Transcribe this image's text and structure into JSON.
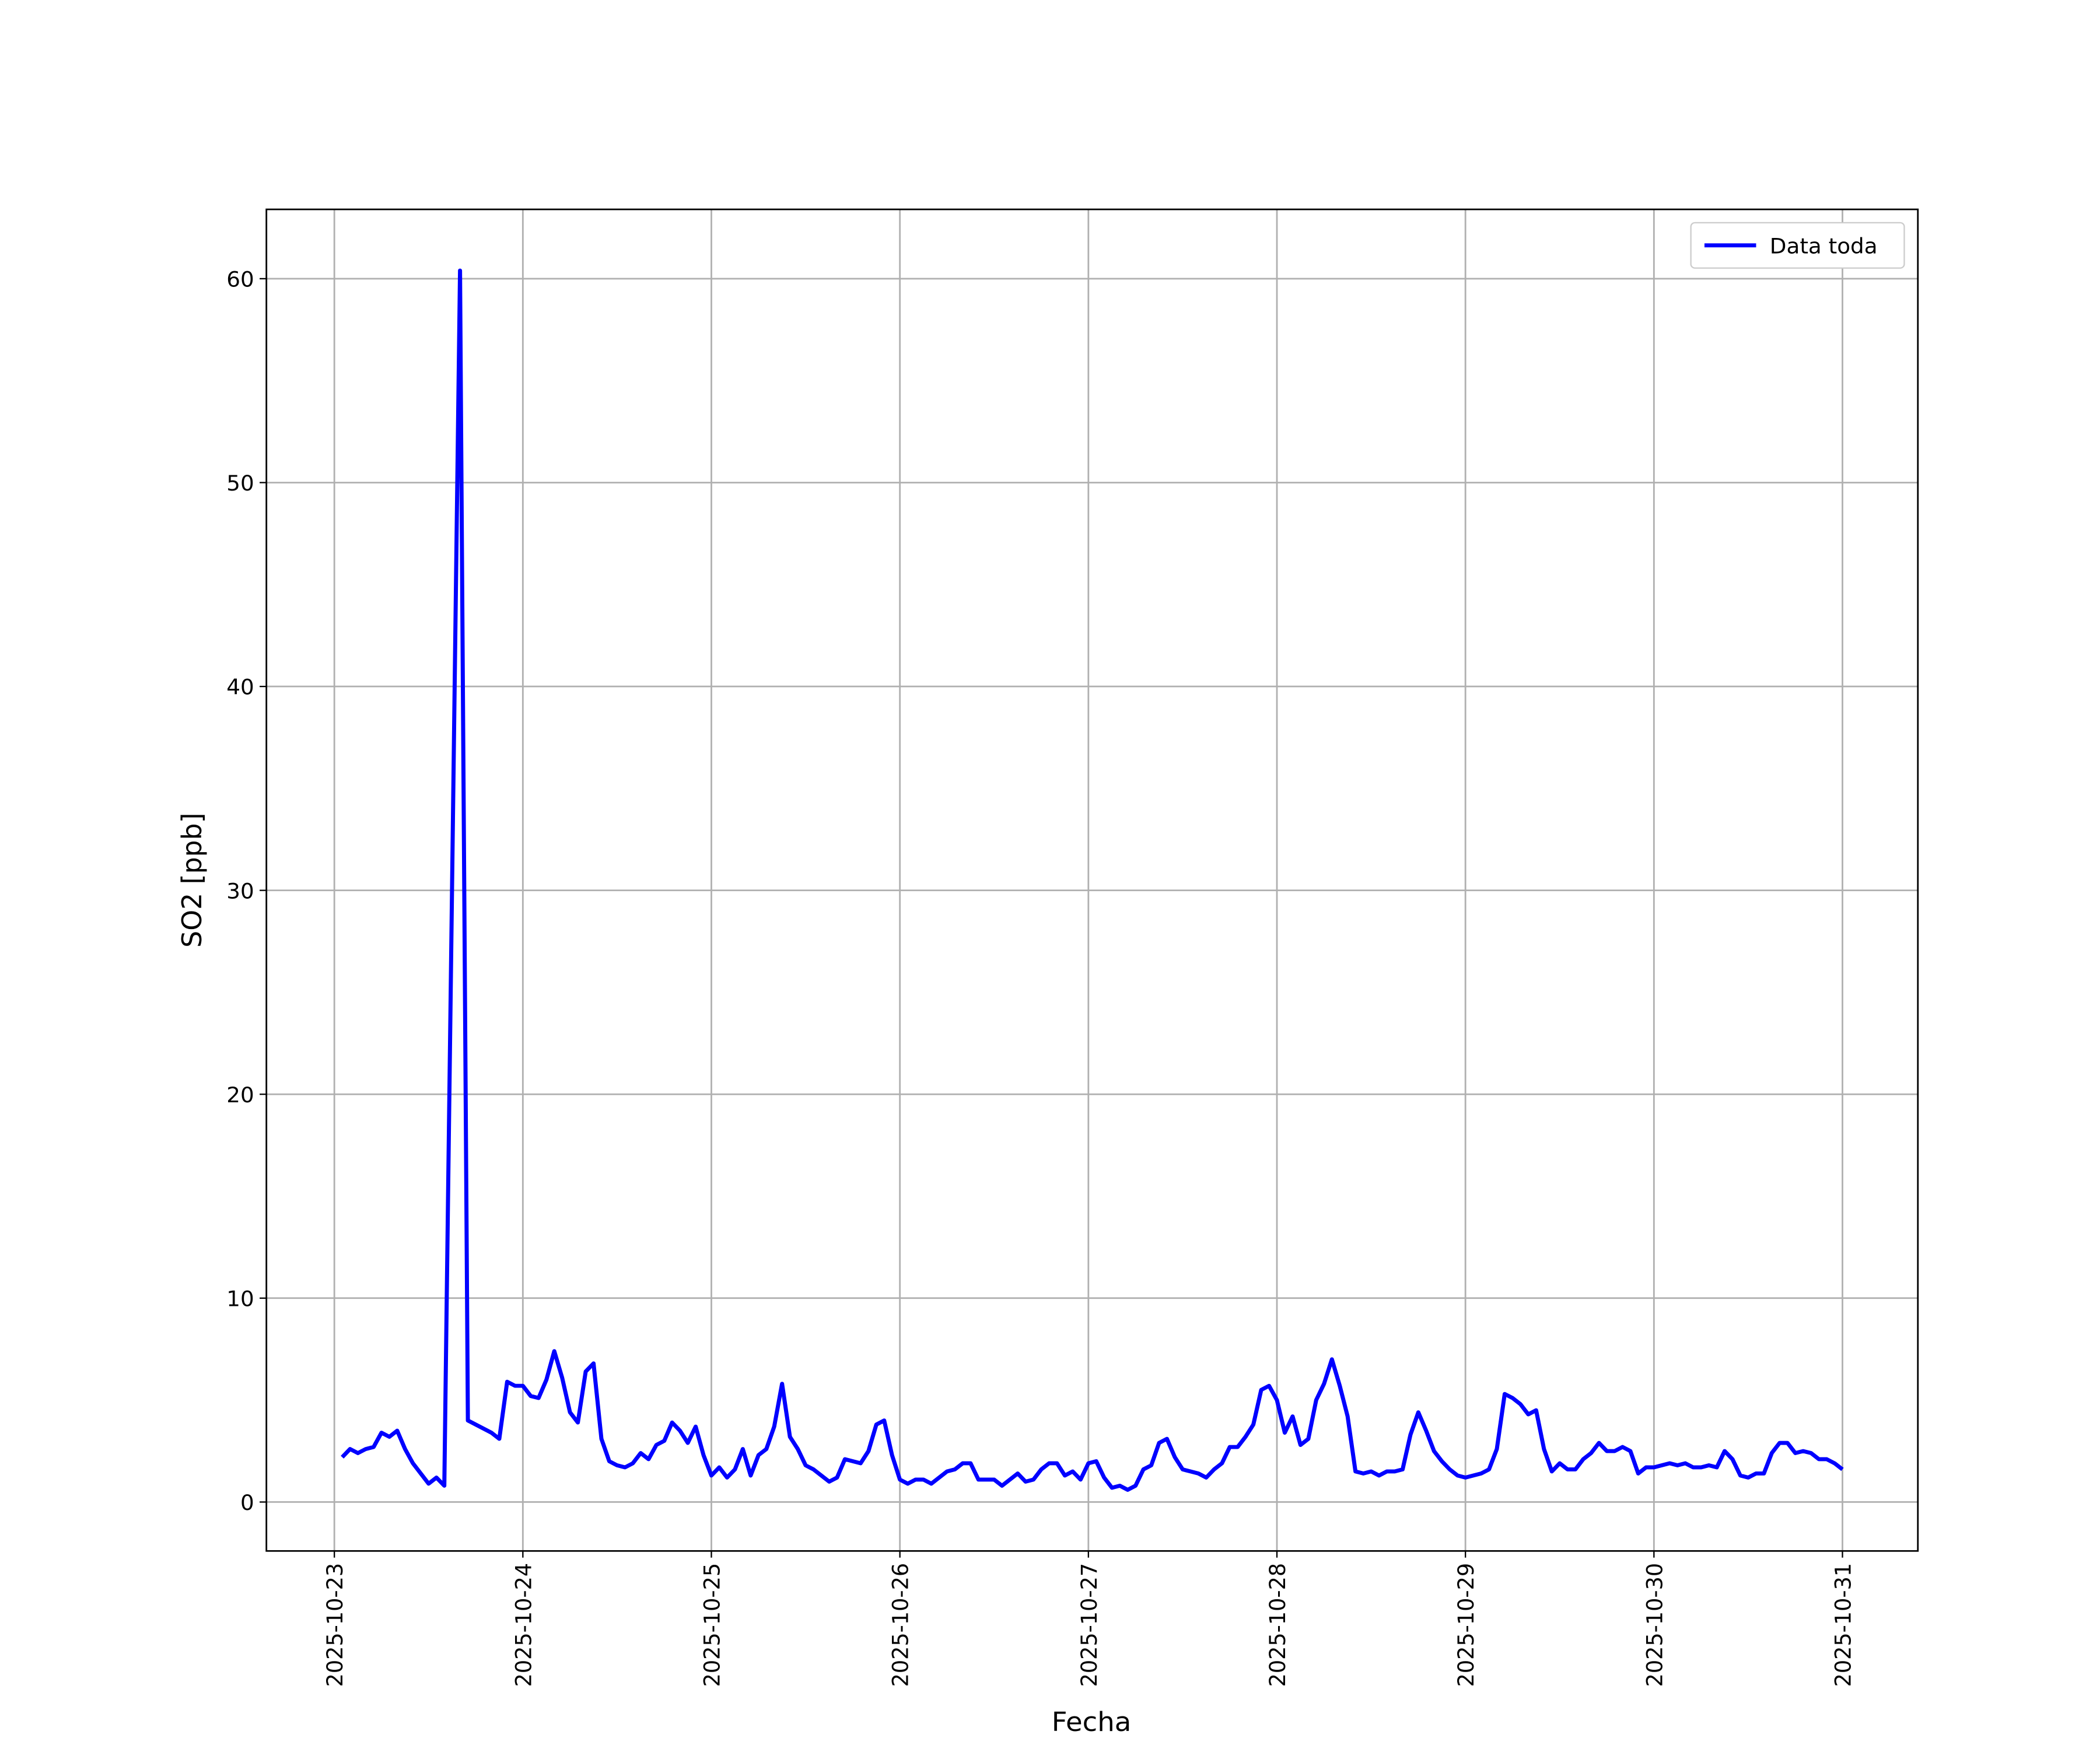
{
  "chart_data": {
    "type": "line",
    "x_label": "Fecha",
    "y_label": "SO2 [ppb]",
    "x": [
      "2025-10-23 01:00",
      "2025-10-23 02:00",
      "2025-10-23 03:00",
      "2025-10-23 04:00",
      "2025-10-23 05:00",
      "2025-10-23 06:00",
      "2025-10-23 07:00",
      "2025-10-23 08:00",
      "2025-10-23 09:00",
      "2025-10-23 10:00",
      "2025-10-23 12:00",
      "2025-10-23 13:00",
      "2025-10-23 14:00",
      "2025-10-23 16:00",
      "2025-10-23 17:00",
      "2025-10-23 20:00",
      "2025-10-23 21:00",
      "2025-10-23 22:00",
      "2025-10-23 23:00",
      "2025-10-24 00:00",
      "2025-10-24 01:00",
      "2025-10-24 02:00",
      "2025-10-24 03:00",
      "2025-10-24 04:00",
      "2025-10-24 05:00",
      "2025-10-24 06:00",
      "2025-10-24 07:00",
      "2025-10-24 08:00",
      "2025-10-24 09:00",
      "2025-10-24 10:00",
      "2025-10-24 11:00",
      "2025-10-24 12:00",
      "2025-10-24 13:00",
      "2025-10-24 14:00",
      "2025-10-24 15:00",
      "2025-10-24 16:00",
      "2025-10-24 17:00",
      "2025-10-24 18:00",
      "2025-10-24 19:00",
      "2025-10-24 20:00",
      "2025-10-24 21:00",
      "2025-10-24 22:00",
      "2025-10-24 23:00",
      "2025-10-25 00:00",
      "2025-10-25 01:00",
      "2025-10-25 02:00",
      "2025-10-25 03:00",
      "2025-10-25 04:00",
      "2025-10-25 05:00",
      "2025-10-25 06:00",
      "2025-10-25 07:00",
      "2025-10-25 08:00",
      "2025-10-25 09:00",
      "2025-10-25 10:00",
      "2025-10-25 11:00",
      "2025-10-25 12:00",
      "2025-10-25 13:00",
      "2025-10-25 14:00",
      "2025-10-25 15:00",
      "2025-10-25 16:00",
      "2025-10-25 17:00",
      "2025-10-25 18:00",
      "2025-10-25 19:00",
      "2025-10-25 20:00",
      "2025-10-25 21:00",
      "2025-10-25 22:00",
      "2025-10-25 23:00",
      "2025-10-26 00:00",
      "2025-10-26 01:00",
      "2025-10-26 02:00",
      "2025-10-26 03:00",
      "2025-10-26 04:00",
      "2025-10-26 05:00",
      "2025-10-26 06:00",
      "2025-10-26 07:00",
      "2025-10-26 08:00",
      "2025-10-26 09:00",
      "2025-10-26 10:00",
      "2025-10-26 11:00",
      "2025-10-26 12:00",
      "2025-10-26 13:00",
      "2025-10-26 14:00",
      "2025-10-26 15:00",
      "2025-10-26 16:00",
      "2025-10-26 17:00",
      "2025-10-26 18:00",
      "2025-10-26 19:00",
      "2025-10-26 20:00",
      "2025-10-26 21:00",
      "2025-10-26 22:00",
      "2025-10-26 23:00",
      "2025-10-27 00:00",
      "2025-10-27 01:00",
      "2025-10-27 02:00",
      "2025-10-27 03:00",
      "2025-10-27 04:00",
      "2025-10-27 05:00",
      "2025-10-27 06:00",
      "2025-10-27 07:00",
      "2025-10-27 08:00",
      "2025-10-27 09:00",
      "2025-10-27 10:00",
      "2025-10-27 11:00",
      "2025-10-27 12:00",
      "2025-10-27 13:00",
      "2025-10-27 14:00",
      "2025-10-27 15:00",
      "2025-10-27 16:00",
      "2025-10-27 17:00",
      "2025-10-27 18:00",
      "2025-10-27 19:00",
      "2025-10-27 20:00",
      "2025-10-27 21:00",
      "2025-10-27 22:00",
      "2025-10-27 23:00",
      "2025-10-28 00:00",
      "2025-10-28 01:00",
      "2025-10-28 02:00",
      "2025-10-28 03:00",
      "2025-10-28 04:00",
      "2025-10-28 05:00",
      "2025-10-28 06:00",
      "2025-10-28 07:00",
      "2025-10-28 08:00",
      "2025-10-28 09:00",
      "2025-10-28 10:00",
      "2025-10-28 11:00",
      "2025-10-28 12:00",
      "2025-10-28 13:00",
      "2025-10-28 14:00",
      "2025-10-28 15:00",
      "2025-10-28 16:00",
      "2025-10-28 17:00",
      "2025-10-28 18:00",
      "2025-10-28 19:00",
      "2025-10-28 20:00",
      "2025-10-28 21:00",
      "2025-10-28 22:00",
      "2025-10-28 23:00",
      "2025-10-29 00:00",
      "2025-10-29 01:00",
      "2025-10-29 02:00",
      "2025-10-29 03:00",
      "2025-10-29 04:00",
      "2025-10-29 05:00",
      "2025-10-29 06:00",
      "2025-10-29 07:00",
      "2025-10-29 08:00",
      "2025-10-29 09:00",
      "2025-10-29 10:00",
      "2025-10-29 11:00",
      "2025-10-29 12:00",
      "2025-10-29 13:00",
      "2025-10-29 14:00",
      "2025-10-29 15:00",
      "2025-10-29 16:00",
      "2025-10-29 17:00",
      "2025-10-29 18:00",
      "2025-10-29 19:00",
      "2025-10-29 20:00",
      "2025-10-29 21:00",
      "2025-10-29 22:00",
      "2025-10-29 23:00",
      "2025-10-30 00:00",
      "2025-10-30 01:00",
      "2025-10-30 02:00",
      "2025-10-30 03:00",
      "2025-10-30 04:00",
      "2025-10-30 05:00",
      "2025-10-30 06:00",
      "2025-10-30 07:00",
      "2025-10-30 08:00",
      "2025-10-30 09:00",
      "2025-10-30 10:00",
      "2025-10-30 11:00",
      "2025-10-30 12:00",
      "2025-10-30 13:00",
      "2025-10-30 14:00",
      "2025-10-30 15:00",
      "2025-10-30 16:00",
      "2025-10-30 17:00",
      "2025-10-30 18:00",
      "2025-10-30 19:00",
      "2025-10-30 20:00",
      "2025-10-30 21:00",
      "2025-10-30 22:00",
      "2025-10-30 23:00",
      "2025-10-31 00:00"
    ],
    "series": [
      {
        "name": "Data toda",
        "color": "#0000ff",
        "values": [
          2.2,
          2.6,
          2.4,
          2.6,
          2.7,
          3.4,
          3.2,
          3.5,
          2.6,
          1.9,
          0.9,
          1.2,
          0.8,
          60.4,
          4.0,
          3.4,
          3.1,
          5.9,
          5.7,
          5.7,
          5.2,
          5.1,
          6.0,
          7.4,
          6.1,
          4.4,
          3.9,
          6.4,
          6.8,
          3.1,
          2.0,
          1.8,
          1.7,
          1.9,
          2.4,
          2.1,
          2.8,
          3.0,
          3.9,
          3.5,
          2.9,
          3.7,
          2.3,
          1.3,
          1.7,
          1.2,
          1.6,
          2.6,
          1.3,
          2.3,
          2.6,
          3.7,
          5.8,
          3.2,
          2.6,
          1.8,
          1.6,
          1.3,
          1.0,
          1.2,
          2.1,
          2.0,
          1.9,
          2.5,
          3.8,
          4.0,
          2.3,
          1.1,
          0.9,
          1.1,
          1.1,
          0.9,
          1.2,
          1.5,
          1.6,
          1.9,
          1.9,
          1.1,
          1.1,
          1.1,
          0.8,
          1.1,
          1.4,
          1.0,
          1.1,
          1.6,
          1.9,
          1.9,
          1.3,
          1.5,
          1.1,
          1.9,
          2.0,
          1.2,
          0.7,
          0.8,
          0.6,
          0.8,
          1.6,
          1.8,
          2.9,
          3.1,
          2.2,
          1.6,
          1.5,
          1.4,
          1.2,
          1.6,
          1.9,
          2.7,
          2.7,
          3.2,
          3.8,
          5.5,
          5.7,
          5.0,
          3.4,
          4.2,
          2.8,
          3.1,
          5.0,
          5.8,
          7.0,
          5.7,
          4.2,
          1.5,
          1.4,
          1.5,
          1.3,
          1.5,
          1.5,
          1.6,
          3.3,
          4.4,
          3.5,
          2.5,
          2.0,
          1.6,
          1.3,
          1.2,
          1.3,
          1.4,
          1.6,
          2.6,
          5.3,
          5.1,
          4.8,
          4.3,
          4.5,
          2.6,
          1.5,
          1.9,
          1.6,
          1.6,
          2.1,
          2.4,
          2.9,
          2.5,
          2.5,
          2.7,
          2.5,
          1.4,
          1.7,
          1.7,
          1.8,
          1.9,
          1.8,
          1.9,
          1.7,
          1.7,
          1.8,
          1.7,
          2.5,
          2.1,
          1.3,
          1.2,
          1.4,
          1.4,
          2.4,
          2.9,
          2.9,
          2.4,
          2.5,
          2.4,
          2.1,
          2.1,
          1.9,
          1.6
        ]
      }
    ],
    "xlim": [
      "2025-10-22 15:21",
      "2025-10-31 09:36"
    ],
    "xticks": [
      "2025-10-23",
      "2025-10-24",
      "2025-10-25",
      "2025-10-26",
      "2025-10-27",
      "2025-10-28",
      "2025-10-29",
      "2025-10-30",
      "2025-10-31"
    ],
    "ylim": [
      -2.4,
      63.4
    ],
    "yticks": [
      0,
      10,
      20,
      30,
      40,
      50,
      60
    ],
    "grid": true,
    "legend": "upper right"
  }
}
